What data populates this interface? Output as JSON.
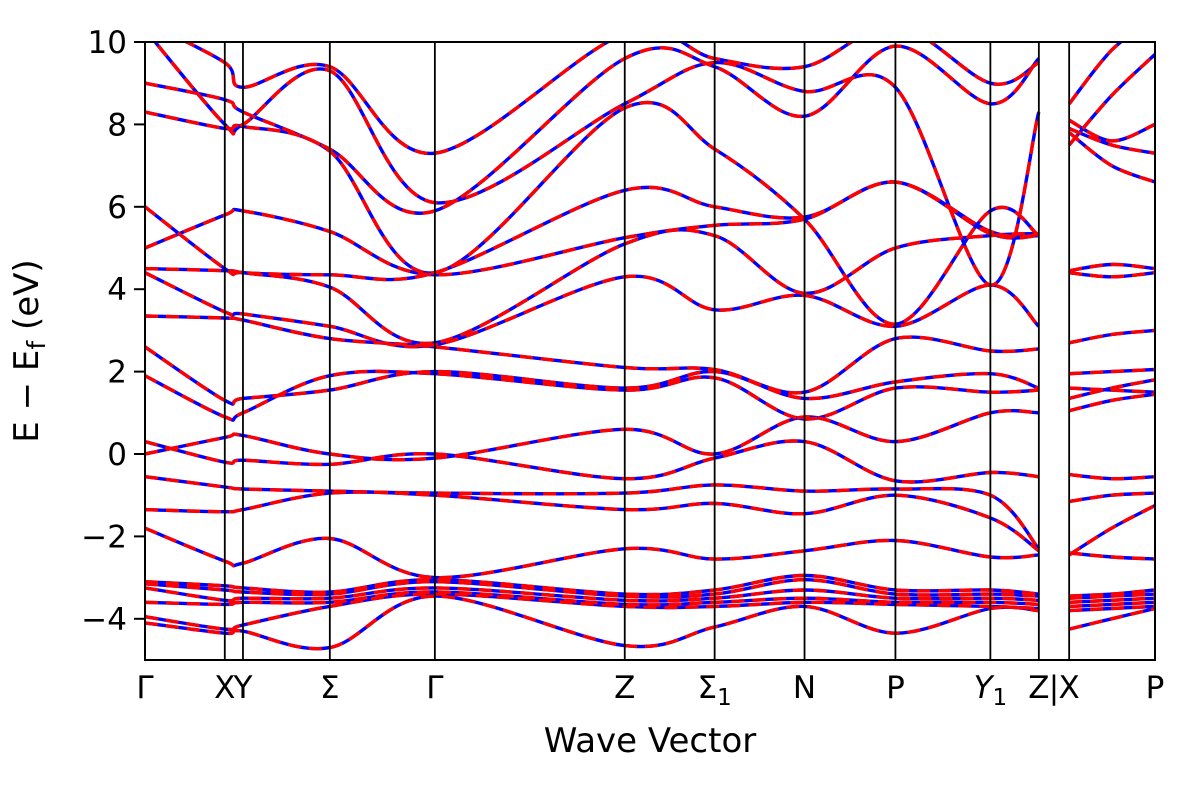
{
  "figure": {
    "background": "#ffffff",
    "border_color": "#000000"
  },
  "chart_data": {
    "type": "line",
    "title": "",
    "xlabel": "Wave Vector",
    "ylabel_parts": {
      "pre": "E − E",
      "sub": "f",
      "post": " (eV)"
    },
    "ylim": [
      -5,
      10
    ],
    "yticks": [
      10,
      8,
      6,
      4,
      2,
      0,
      -2,
      -4
    ],
    "grid": false,
    "legend": "none",
    "series_style": [
      {
        "name": "band-structure-solid",
        "color": "#0000ff",
        "style": "solid"
      },
      {
        "name": "band-structure-overlay",
        "color": "#ff0000",
        "style": "dashed"
      }
    ],
    "kpoint_x": [
      0.0,
      0.079,
      0.097,
      0.183,
      0.287,
      0.475,
      0.564,
      0.653,
      0.743,
      0.837,
      0.885,
      0.915,
      0.957,
      1.0
    ],
    "segment_break_after_index": 10,
    "kpoint_lines": [
      0.079,
      0.097,
      0.183,
      0.287,
      0.475,
      0.564,
      0.653,
      0.743,
      0.837,
      0.885,
      0.915
    ],
    "kpoint_labels": [
      {
        "x": 0.0,
        "text": "Γ"
      },
      {
        "x": 0.079,
        "text": "X"
      },
      {
        "x": 0.097,
        "text": "Y"
      },
      {
        "x": 0.183,
        "text": "Σ"
      },
      {
        "x": 0.287,
        "text": "Γ"
      },
      {
        "x": 0.475,
        "text": "Z"
      },
      {
        "x": 0.564,
        "text": "Σ",
        "sub": "1"
      },
      {
        "x": 0.653,
        "text": "N"
      },
      {
        "x": 0.743,
        "text": "P"
      },
      {
        "x": 0.837,
        "text": "Y",
        "sub": "1",
        "italic": true
      },
      {
        "x": 0.885,
        "text": "Z"
      },
      {
        "x": 0.9,
        "text": "|"
      },
      {
        "x": 0.915,
        "text": "X"
      },
      {
        "x": 1.0,
        "text": "P"
      }
    ],
    "bands": [
      [
        -4.1,
        -4.35,
        -4.3,
        -4.7,
        -3.45,
        -4.65,
        -4.2,
        -3.7,
        -4.35,
        -3.75,
        -3.8,
        -4.25,
        -4.0,
        -3.75
      ],
      [
        -3.95,
        -4.25,
        -4.15,
        -3.7,
        -3.4,
        -3.7,
        -3.7,
        -3.6,
        -3.65,
        -3.7,
        -3.75,
        -3.8,
        -3.75,
        -3.7
      ],
      [
        -3.6,
        -3.65,
        -3.6,
        -3.6,
        -3.35,
        -3.65,
        -3.6,
        -3.5,
        -3.6,
        -3.6,
        -3.65,
        -3.7,
        -3.65,
        -3.6
      ],
      [
        -3.25,
        -3.55,
        -3.5,
        -3.5,
        -3.25,
        -3.55,
        -3.5,
        -3.3,
        -3.5,
        -3.5,
        -3.55,
        -3.6,
        -3.55,
        -3.5
      ],
      [
        -3.15,
        -3.3,
        -3.35,
        -3.4,
        -3.1,
        -3.45,
        -3.4,
        -3.05,
        -3.4,
        -3.4,
        -3.45,
        -3.5,
        -3.45,
        -3.4
      ],
      [
        -3.1,
        -3.2,
        -3.25,
        -3.35,
        -3.05,
        -3.4,
        -3.3,
        -2.95,
        -3.3,
        -3.3,
        -3.4,
        -3.45,
        -3.4,
        -3.3
      ],
      [
        -1.8,
        -2.6,
        -2.65,
        -2.05,
        -3.0,
        -2.3,
        -2.55,
        -2.35,
        -2.1,
        -2.5,
        -2.45,
        -2.4,
        -2.5,
        -2.55
      ],
      [
        -1.35,
        -1.4,
        -1.35,
        -0.95,
        -1.0,
        -1.35,
        -1.2,
        -1.45,
        -1.0,
        -1.55,
        -2.35,
        -2.45,
        -1.8,
        -1.25
      ],
      [
        -0.55,
        -0.8,
        -0.85,
        -0.9,
        -0.95,
        -0.95,
        -0.75,
        -0.9,
        -0.85,
        -1.0,
        -2.3,
        -1.15,
        -1.0,
        -0.95
      ],
      [
        0.3,
        -0.2,
        -0.15,
        -0.25,
        0.0,
        -0.6,
        -0.1,
        0.3,
        -0.65,
        -0.45,
        -0.55,
        -0.5,
        -0.6,
        -0.55
      ],
      [
        0.0,
        0.4,
        0.45,
        0.0,
        -0.1,
        0.6,
        0.0,
        0.9,
        0.3,
        1.0,
        1.0,
        1.6,
        1.55,
        1.5
      ],
      [
        1.9,
        0.9,
        1.0,
        1.9,
        1.95,
        1.55,
        1.85,
        0.85,
        1.6,
        1.5,
        1.55,
        1.05,
        1.3,
        1.45
      ],
      [
        2.6,
        1.3,
        1.35,
        1.55,
        2.0,
        1.6,
        2.0,
        1.35,
        1.75,
        1.95,
        1.6,
        1.35,
        1.6,
        1.8
      ],
      [
        3.35,
        3.3,
        3.25,
        2.8,
        2.6,
        2.1,
        2.05,
        1.5,
        2.8,
        2.5,
        2.55,
        1.95,
        2.0,
        2.05
      ],
      [
        4.4,
        3.45,
        3.4,
        3.1,
        2.65,
        4.3,
        3.5,
        3.85,
        3.1,
        4.1,
        3.1,
        2.7,
        2.9,
        3.0
      ],
      [
        4.5,
        4.45,
        4.4,
        4.05,
        2.7,
        5.1,
        5.3,
        3.9,
        5.0,
        5.3,
        5.35,
        4.4,
        4.3,
        4.4
      ],
      [
        5.0,
        5.8,
        5.9,
        5.4,
        4.35,
        5.25,
        5.55,
        5.7,
        6.6,
        5.35,
        5.3,
        4.45,
        4.6,
        4.5
      ],
      [
        6.0,
        4.5,
        4.4,
        4.35,
        4.4,
        6.4,
        6.0,
        5.75,
        6.6,
        5.4,
        5.3,
        7.9,
        7.5,
        7.3
      ],
      [
        8.3,
        7.9,
        7.95,
        7.35,
        4.4,
        8.4,
        7.4,
        5.7,
        3.15,
        5.9,
        5.3,
        7.8,
        7.0,
        6.6
      ],
      [
        10.3,
        8.0,
        8.0,
        9.3,
        6.1,
        8.5,
        9.5,
        8.8,
        8.9,
        4.1,
        8.3,
        8.1,
        7.6,
        8.0
      ],
      [
        9.0,
        8.6,
        8.3,
        7.4,
        5.9,
        9.6,
        9.4,
        8.2,
        9.9,
        8.5,
        9.6,
        7.5,
        8.7,
        9.7
      ],
      [
        10.5,
        9.5,
        8.9,
        9.4,
        7.3,
        10.2,
        9.6,
        9.4,
        10.4,
        9.0,
        9.5,
        8.5,
        9.8,
        10.6
      ]
    ]
  }
}
